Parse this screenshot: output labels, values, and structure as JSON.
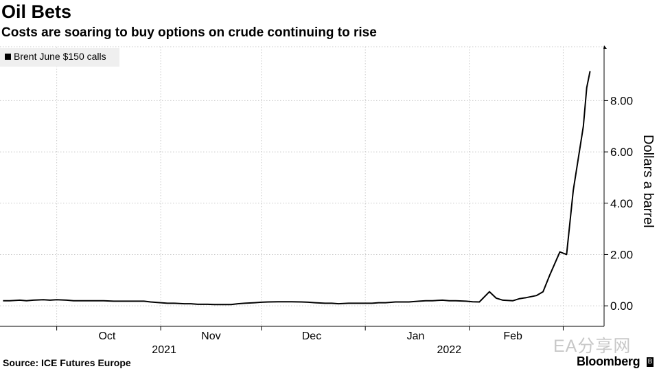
{
  "title": "Oil Bets",
  "subtitle": "Costs are soaring to buy options on crude continuing to rise",
  "source": "Source: ICE Futures Europe",
  "brand": "Bloomberg",
  "watermark": "EA分享网",
  "chart_data": {
    "type": "line",
    "title": "Oil Bets",
    "subtitle": "Costs are soaring to buy options on crude continuing to rise",
    "ylabel": "Dollars a barrel",
    "y_axis_side": "right",
    "ylim": [
      -0.8,
      10.1
    ],
    "yticks": [
      0,
      2,
      4,
      6,
      8
    ],
    "ytick_labels": [
      "0.00",
      "2.00",
      "4.00",
      "6.00",
      "8.00"
    ],
    "x_month_labels": [
      "Oct",
      "Nov",
      "Dec",
      "Jan",
      "Feb"
    ],
    "x_year_labels": [
      "2021",
      "2022"
    ],
    "grid": true,
    "legend_position": "top-left",
    "series": [
      {
        "name": "Brent June $150 calls",
        "color": "#000000",
        "x": [
          "2021-09-15",
          "2021-09-17",
          "2021-09-20",
          "2021-09-22",
          "2021-09-24",
          "2021-09-27",
          "2021-09-29",
          "2021-10-01",
          "2021-10-04",
          "2021-10-06",
          "2021-10-08",
          "2021-10-11",
          "2021-10-13",
          "2021-10-15",
          "2021-10-18",
          "2021-10-20",
          "2021-10-22",
          "2021-10-25",
          "2021-10-27",
          "2021-10-29",
          "2021-11-01",
          "2021-11-03",
          "2021-11-05",
          "2021-11-08",
          "2021-11-10",
          "2021-11-12",
          "2021-11-15",
          "2021-11-17",
          "2021-11-19",
          "2021-11-22",
          "2021-11-24",
          "2021-11-26",
          "2021-11-29",
          "2021-12-01",
          "2021-12-03",
          "2021-12-06",
          "2021-12-08",
          "2021-12-10",
          "2021-12-13",
          "2021-12-15",
          "2021-12-17",
          "2021-12-20",
          "2021-12-22",
          "2021-12-24",
          "2021-12-27",
          "2021-12-29",
          "2021-12-31",
          "2022-01-03",
          "2022-01-05",
          "2022-01-07",
          "2022-01-10",
          "2022-01-12",
          "2022-01-14",
          "2022-01-17",
          "2022-01-19",
          "2022-01-21",
          "2022-01-24",
          "2022-01-26",
          "2022-01-28",
          "2022-01-31",
          "2022-02-02",
          "2022-02-04",
          "2022-02-07",
          "2022-02-09",
          "2022-02-11",
          "2022-02-14",
          "2022-02-16",
          "2022-02-18",
          "2022-02-21",
          "2022-02-23",
          "2022-02-25",
          "2022-02-28",
          "2022-03-02",
          "2022-03-04",
          "2022-03-07",
          "2022-03-08",
          "2022-03-09"
        ],
        "values": [
          0.2,
          0.2,
          0.22,
          0.2,
          0.22,
          0.24,
          0.22,
          0.24,
          0.22,
          0.2,
          0.2,
          0.2,
          0.2,
          0.2,
          0.18,
          0.18,
          0.18,
          0.18,
          0.18,
          0.15,
          0.12,
          0.1,
          0.1,
          0.08,
          0.08,
          0.06,
          0.06,
          0.05,
          0.05,
          0.05,
          0.08,
          0.1,
          0.12,
          0.14,
          0.15,
          0.16,
          0.16,
          0.16,
          0.15,
          0.14,
          0.12,
          0.1,
          0.1,
          0.08,
          0.1,
          0.1,
          0.1,
          0.1,
          0.12,
          0.12,
          0.15,
          0.15,
          0.15,
          0.18,
          0.2,
          0.2,
          0.22,
          0.2,
          0.2,
          0.18,
          0.16,
          0.15,
          0.55,
          0.3,
          0.22,
          0.2,
          0.28,
          0.32,
          0.4,
          0.55,
          1.2,
          2.1,
          2.0,
          4.5,
          7.0,
          8.5,
          9.15
        ]
      }
    ]
  }
}
